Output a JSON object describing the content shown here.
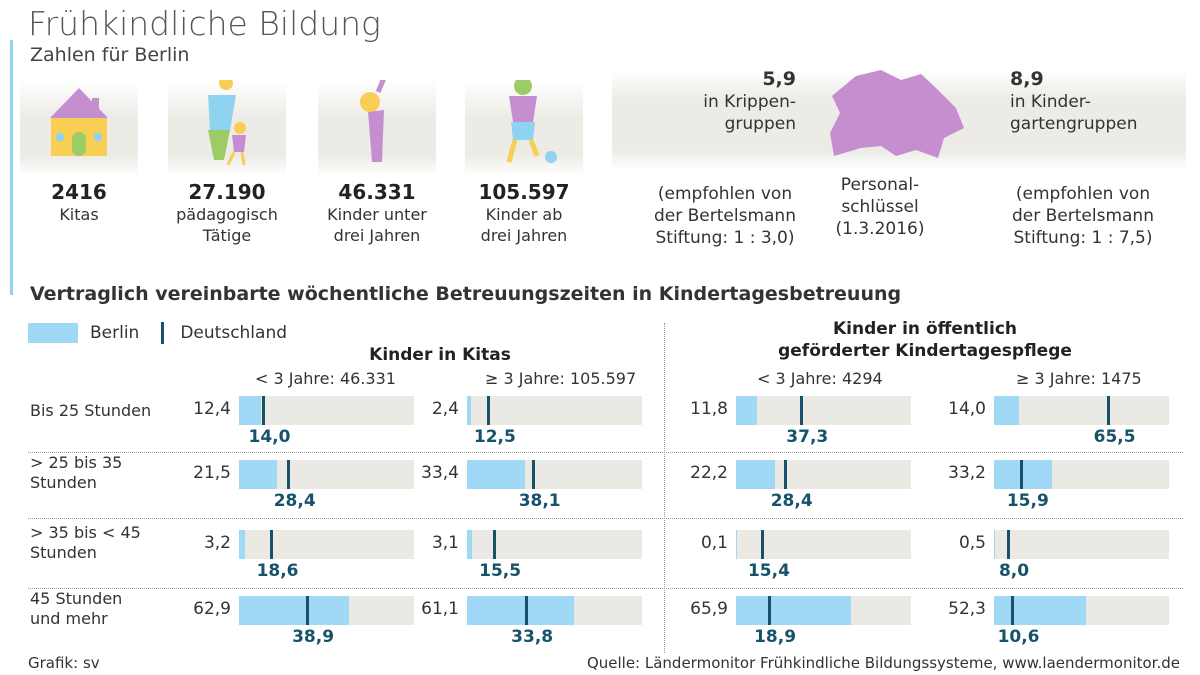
{
  "header": {
    "title": "Frühkindliche Bildung",
    "subtitle": "Zahlen für Berlin"
  },
  "stats": [
    {
      "value": "2416",
      "label1": "Kitas",
      "label2": "",
      "icon": "house-icon"
    },
    {
      "value": "27.190",
      "label1": "pädagogisch",
      "label2": "Tätige",
      "icon": "adult-with-child-icon"
    },
    {
      "value": "46.331",
      "label1": "Kinder unter",
      "label2": "drei Jahren",
      "icon": "toddler-icon"
    },
    {
      "value": "105.597",
      "label1": "Kinder ab",
      "label2": "drei Jahren",
      "icon": "child-with-ball-icon"
    }
  ],
  "personal": {
    "left_value": "5,9",
    "left_l1": "in Krippen-",
    "left_l2": "gruppen",
    "right_value": "8,9",
    "right_l1": "in Kinder-",
    "right_l2": "gartengruppen",
    "center_l1": "Personal-",
    "center_l2": "schlüssel",
    "center_l3": "(1.3.2016)",
    "left_note1": "(empfohlen von",
    "left_note2": "der Bertelsmann",
    "left_note3": "Stiftung: 1 : 3,0)",
    "right_note1": "(empfohlen von",
    "right_note2": "der Bertelsmann",
    "right_note3": "Stiftung: 1 : 7,5)"
  },
  "chart_data": {
    "type": "bar",
    "title": "Vertraglich vereinbarte wöchentliche Betreuungszeiten in Kindertagesbetreuung",
    "legend": {
      "berlin": "Berlin",
      "deutschland": "Deutschland"
    },
    "colors": {
      "berlin": "#9fd9f5",
      "deutschland": "#16536a",
      "track": "#eae9e3"
    },
    "xlim": [
      0,
      100
    ],
    "groups": [
      {
        "title1": "Kinder in Kitas",
        "title2": ""
      },
      {
        "title1": "Kinder in öffentlich",
        "title2": "geförderter Kindertagespflege"
      }
    ],
    "columns": [
      "< 3 Jahre: 46.331",
      "≥ 3 Jahre: 105.597",
      "< 3 Jahre: 4294",
      "≥ 3 Jahre: 1475"
    ],
    "categories": [
      [
        "Bis 25 Stunden",
        ""
      ],
      [
        "> 25 bis 35",
        "Stunden"
      ],
      [
        "> 35 bis < 45",
        "Stunden"
      ],
      [
        "45 Stunden",
        "und mehr"
      ]
    ],
    "berlin": [
      [
        12.4,
        2.4,
        11.8,
        14.0
      ],
      [
        21.5,
        33.4,
        22.2,
        33.2
      ],
      [
        3.2,
        3.1,
        0.1,
        0.5
      ],
      [
        62.9,
        61.1,
        65.9,
        52.3
      ]
    ],
    "deutschland": [
      [
        14.0,
        12.5,
        37.3,
        65.5
      ],
      [
        28.4,
        38.1,
        28.4,
        15.9
      ],
      [
        18.6,
        15.5,
        15.4,
        8.0
      ],
      [
        38.9,
        33.8,
        18.9,
        10.6
      ]
    ]
  },
  "footer": {
    "credit": "Grafik: sv",
    "source": "Quelle: Ländermonitor Frühkindliche Bildungssysteme, www.laendermonitor.de"
  }
}
